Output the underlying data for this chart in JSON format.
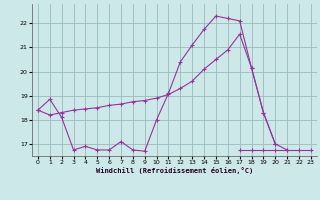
{
  "xlabel": "Windchill (Refroidissement éolien,°C)",
  "bg_color": "#cce8e8",
  "grid_color": "#99bbbb",
  "line_color": "#993399",
  "xlim": [
    -0.5,
    23.5
  ],
  "ylim": [
    16.5,
    22.8
  ],
  "yticks": [
    17,
    18,
    19,
    20,
    21,
    22
  ],
  "xticks": [
    0,
    1,
    2,
    3,
    4,
    5,
    6,
    7,
    8,
    9,
    10,
    11,
    12,
    13,
    14,
    15,
    16,
    17,
    18,
    19,
    20,
    21,
    22,
    23
  ],
  "line1_x": [
    0,
    1,
    2,
    3,
    4,
    5,
    6,
    7,
    8,
    9,
    10,
    11,
    12,
    13,
    14,
    15,
    16,
    17,
    18,
    19,
    20,
    21
  ],
  "line1_y": [
    18.4,
    18.85,
    18.1,
    16.75,
    16.9,
    16.75,
    16.75,
    17.1,
    16.75,
    16.7,
    18.0,
    19.1,
    20.4,
    21.1,
    21.75,
    22.3,
    22.2,
    22.1,
    20.15,
    18.3,
    17.0,
    16.75
  ],
  "line2_x": [
    0,
    1,
    2,
    3,
    4,
    5,
    6,
    7,
    8,
    9,
    10,
    11,
    12,
    13,
    14,
    15,
    16,
    17,
    18,
    19,
    20
  ],
  "line2_y": [
    18.4,
    18.2,
    18.3,
    18.4,
    18.45,
    18.5,
    18.6,
    18.65,
    18.75,
    18.8,
    18.9,
    19.05,
    19.3,
    19.6,
    20.1,
    20.5,
    20.9,
    21.55,
    20.15,
    18.3,
    17.0
  ],
  "line3_x": [
    17,
    18,
    19,
    20,
    21,
    22,
    23
  ],
  "line3_y": [
    16.75,
    16.75,
    16.75,
    16.75,
    16.75,
    16.75,
    16.75
  ]
}
